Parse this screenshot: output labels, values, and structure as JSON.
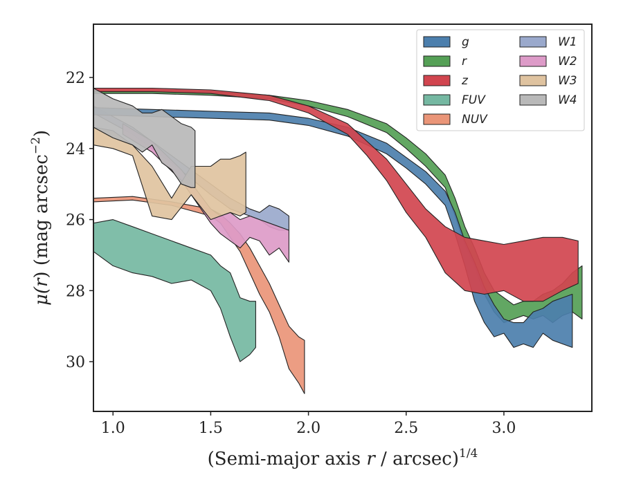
{
  "chart_data": {
    "type": "area",
    "xlabel_main": "(Semi-major axis ",
    "xlabel_var": "r",
    "xlabel_tail": " / arcsec)",
    "xlabel_sup": "1/4",
    "ylabel_main": "μ(",
    "ylabel_var": "r",
    "ylabel_tail": ") (mag arcsec",
    "ylabel_sup": "−2",
    "ylabel_close": ")",
    "xlim": [
      0.9,
      3.45
    ],
    "ylim": [
      31.4,
      20.5
    ],
    "y_inverted": true,
    "xticks": [
      1.0,
      1.5,
      2.0,
      2.5,
      3.0
    ],
    "xtick_labels": [
      "1.0",
      "1.5",
      "2.0",
      "2.5",
      "3.0"
    ],
    "yticks": [
      22,
      24,
      26,
      28,
      30
    ],
    "ytick_labels": [
      "22",
      "24",
      "26",
      "28",
      "30"
    ],
    "grid": false,
    "legend_placement": "upper right",
    "legend_columns": 2,
    "series": [
      {
        "name": "g",
        "color": "#4c7fad",
        "order": 5,
        "x": [
          0.9,
          1.2,
          1.5,
          1.8,
          2.0,
          2.2,
          2.4,
          2.5,
          2.6,
          2.7,
          2.75,
          2.8,
          2.85,
          2.9,
          2.95,
          3.0,
          3.05,
          3.1,
          3.15,
          3.2,
          3.25,
          3.3,
          3.35
        ],
        "lower": [
          22.85,
          22.9,
          22.95,
          23.0,
          23.15,
          23.4,
          23.85,
          24.25,
          24.65,
          25.2,
          25.8,
          26.6,
          27.2,
          27.9,
          28.4,
          28.8,
          28.9,
          28.9,
          28.6,
          28.5,
          28.3,
          28.2,
          28.1
        ],
        "upper": [
          23.05,
          23.1,
          23.15,
          23.2,
          23.35,
          23.65,
          24.15,
          24.55,
          25.0,
          25.6,
          26.4,
          27.3,
          28.3,
          28.9,
          29.3,
          29.2,
          29.6,
          29.5,
          29.6,
          29.2,
          29.4,
          29.5,
          29.6
        ]
      },
      {
        "name": "r",
        "color": "#55a056",
        "order": 4,
        "x": [
          0.9,
          1.2,
          1.5,
          1.8,
          2.0,
          2.2,
          2.4,
          2.5,
          2.6,
          2.7,
          2.75,
          2.8,
          2.85,
          2.9,
          2.95,
          3.0,
          3.05,
          3.1,
          3.15,
          3.2,
          3.25,
          3.3,
          3.35,
          3.4
        ],
        "lower": [
          22.35,
          22.35,
          22.4,
          22.5,
          22.65,
          22.9,
          23.3,
          23.7,
          24.15,
          24.75,
          25.4,
          26.2,
          26.8,
          27.5,
          28.0,
          28.2,
          28.4,
          28.3,
          28.3,
          28.1,
          28.0,
          27.8,
          27.5,
          27.3
        ],
        "upper": [
          22.45,
          22.45,
          22.5,
          22.6,
          22.8,
          23.1,
          23.55,
          24.0,
          24.5,
          25.1,
          25.9,
          26.7,
          27.3,
          28.1,
          28.6,
          28.9,
          28.8,
          28.7,
          28.8,
          28.7,
          28.9,
          28.7,
          28.6,
          28.8
        ]
      },
      {
        "name": "z",
        "color": "#d1454f",
        "order": 6,
        "x": [
          0.9,
          1.2,
          1.5,
          1.8,
          2.0,
          2.2,
          2.3,
          2.4,
          2.5,
          2.6,
          2.7,
          2.8,
          2.9,
          3.0,
          3.1,
          3.2,
          3.3,
          3.38
        ],
        "lower": [
          22.3,
          22.3,
          22.35,
          22.5,
          22.8,
          23.3,
          23.8,
          24.3,
          25.0,
          25.7,
          26.2,
          26.5,
          26.6,
          26.7,
          26.6,
          26.5,
          26.5,
          26.6
        ],
        "upper": [
          22.4,
          22.4,
          22.45,
          22.65,
          23.0,
          23.6,
          24.2,
          24.9,
          25.8,
          26.5,
          27.5,
          28.0,
          28.1,
          28.0,
          28.3,
          28.3,
          28.0,
          27.8
        ]
      },
      {
        "name": "FUV",
        "color": "#75b8a2",
        "order": 1,
        "x": [
          0.9,
          1.0,
          1.1,
          1.2,
          1.3,
          1.4,
          1.5,
          1.55,
          1.6,
          1.65,
          1.7,
          1.73
        ],
        "lower": [
          26.1,
          26.0,
          26.2,
          26.4,
          26.6,
          26.8,
          27.0,
          27.3,
          27.5,
          28.2,
          28.3,
          28.3
        ],
        "upper": [
          26.9,
          27.3,
          27.5,
          27.6,
          27.8,
          27.7,
          28.0,
          28.5,
          29.3,
          30.0,
          29.8,
          29.6
        ]
      },
      {
        "name": "NUV",
        "color": "#ea9578",
        "order": 2,
        "x": [
          0.9,
          1.1,
          1.3,
          1.5,
          1.55,
          1.6,
          1.65,
          1.7,
          1.75,
          1.8,
          1.85,
          1.9,
          1.95,
          1.98
        ],
        "lower": [
          25.4,
          25.35,
          25.5,
          25.7,
          25.85,
          26.1,
          26.4,
          26.8,
          27.3,
          27.8,
          28.4,
          29.0,
          29.3,
          29.4
        ],
        "upper": [
          25.5,
          25.45,
          25.6,
          25.9,
          26.1,
          26.5,
          26.9,
          27.5,
          28.1,
          28.6,
          29.3,
          30.2,
          30.6,
          30.9
        ]
      },
      {
        "name": "W1",
        "color": "#9aa9cc",
        "order": 3,
        "x": [
          0.9,
          1.1,
          1.3,
          1.5,
          1.6,
          1.7,
          1.75,
          1.8,
          1.85,
          1.9
        ],
        "lower": [
          22.8,
          23.4,
          24.2,
          25.0,
          25.4,
          25.7,
          25.8,
          25.6,
          25.7,
          25.9
        ],
        "upper": [
          23.0,
          23.6,
          24.4,
          25.3,
          25.7,
          25.9,
          26.0,
          26.2,
          26.3,
          26.3
        ]
      },
      {
        "name": "W2",
        "color": "#dd9bc8",
        "order": 3,
        "x": [
          1.05,
          1.2,
          1.35,
          1.5,
          1.55,
          1.6,
          1.65,
          1.7,
          1.75,
          1.8,
          1.85,
          1.9
        ],
        "lower": [
          23.3,
          23.8,
          24.6,
          25.7,
          25.9,
          25.8,
          26.0,
          25.9,
          26.0,
          26.1,
          26.2,
          26.3
        ],
        "upper": [
          23.6,
          24.1,
          24.9,
          26.1,
          26.4,
          26.6,
          26.8,
          26.5,
          26.6,
          27.0,
          26.8,
          27.2
        ]
      },
      {
        "name": "W3",
        "color": "#dfc3a0",
        "order": 7,
        "x": [
          0.9,
          1.0,
          1.1,
          1.2,
          1.3,
          1.4,
          1.5,
          1.55,
          1.6,
          1.65,
          1.68
        ],
        "lower": [
          23.4,
          23.5,
          23.9,
          24.5,
          25.4,
          24.5,
          24.5,
          24.3,
          24.3,
          24.2,
          24.1
        ],
        "upper": [
          23.9,
          24.0,
          24.2,
          25.9,
          26.0,
          25.3,
          26.0,
          25.9,
          25.8,
          25.9,
          25.8
        ]
      },
      {
        "name": "W4",
        "color": "#b9b9b9",
        "order": 8,
        "x": [
          0.9,
          1.0,
          1.1,
          1.15,
          1.2,
          1.25,
          1.3,
          1.35,
          1.4,
          1.42
        ],
        "lower": [
          22.3,
          22.6,
          22.8,
          23.0,
          23.0,
          22.9,
          23.1,
          23.3,
          23.4,
          23.5
        ],
        "upper": [
          23.4,
          23.7,
          23.9,
          24.1,
          23.9,
          24.4,
          24.6,
          25.0,
          25.1,
          25.1
        ]
      }
    ]
  }
}
